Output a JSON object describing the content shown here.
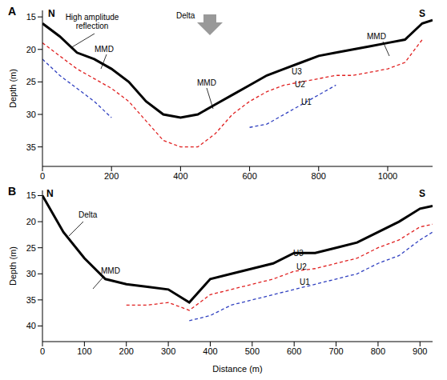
{
  "chart_data": [
    {
      "type": "line",
      "title": "A",
      "y_label": "Depth (m)",
      "annotations": [
        "N",
        "S",
        "High amplitude reflection",
        "MMD",
        "Delta",
        "MMD",
        "MMD",
        "U3",
        "U2",
        "U1"
      ],
      "x": [
        0,
        50,
        100,
        150,
        200,
        250,
        300,
        350,
        400,
        450,
        500,
        550,
        600,
        650,
        700,
        750,
        800,
        850,
        900,
        950,
        1000,
        1050,
        1100,
        1130
      ],
      "xlim": [
        0,
        1130
      ],
      "xticks": [
        0,
        200,
        400,
        600,
        800,
        1000
      ],
      "ylim": [
        14,
        38
      ],
      "yticks": [
        15,
        20,
        25,
        30,
        35
      ],
      "series": [
        {
          "color": "#000000",
          "line_style": "solid",
          "values": [
            16,
            18,
            20.5,
            21.5,
            23,
            25,
            28,
            30,
            30.5,
            30,
            28.5,
            27,
            25.5,
            24,
            23,
            22,
            21,
            20.5,
            20,
            19.5,
            19,
            18.5,
            16,
            15.5
          ]
        },
        {
          "color": "#e02020",
          "line_style": "dashed",
          "values": [
            19,
            21,
            23,
            24.5,
            26,
            28,
            31,
            34,
            35,
            35,
            33,
            30,
            28,
            26.5,
            25.5,
            25,
            24.5,
            24,
            24,
            23.5,
            23,
            22,
            18.5,
            null
          ]
        },
        {
          "color": "#3040c0",
          "line_style": "dashed",
          "values": [
            21.5,
            24,
            26,
            28,
            30.5,
            null,
            null,
            null,
            null,
            null,
            null,
            null,
            32,
            31.5,
            30,
            28.5,
            27,
            25.5,
            null,
            null,
            null,
            null,
            null,
            null
          ]
        }
      ]
    },
    {
      "type": "line",
      "title": "B",
      "y_label": "Depth (m)",
      "x_label": "Distance (m)",
      "annotations": [
        "N",
        "S",
        "Delta",
        "MMD",
        "U3",
        "U2",
        "U1"
      ],
      "x": [
        0,
        50,
        100,
        150,
        200,
        250,
        300,
        350,
        400,
        450,
        500,
        550,
        600,
        650,
        700,
        750,
        800,
        850,
        900,
        930
      ],
      "xlim": [
        0,
        930
      ],
      "xticks": [
        0,
        100,
        200,
        300,
        400,
        500,
        600,
        700,
        800,
        900
      ],
      "ylim": [
        14,
        43
      ],
      "yticks": [
        15,
        20,
        25,
        30,
        35,
        40
      ],
      "series": [
        {
          "color": "#000000",
          "line_style": "solid",
          "values": [
            15,
            22,
            27,
            31,
            32,
            32.5,
            33,
            35.5,
            31,
            30,
            29,
            28,
            26,
            26,
            25,
            24,
            22,
            20,
            17.5,
            17
          ]
        },
        {
          "color": "#e02020",
          "line_style": "dashed",
          "values": [
            null,
            null,
            null,
            null,
            36,
            36,
            35.5,
            37,
            34,
            33,
            32,
            31,
            29.5,
            29,
            28,
            27,
            25,
            23.5,
            21,
            20.5
          ]
        },
        {
          "color": "#3040c0",
          "line_style": "dashed",
          "values": [
            null,
            null,
            null,
            null,
            null,
            null,
            null,
            39,
            38,
            36,
            35,
            34,
            33,
            32,
            31,
            30,
            28,
            26.5,
            23.5,
            22
          ]
        }
      ]
    }
  ]
}
